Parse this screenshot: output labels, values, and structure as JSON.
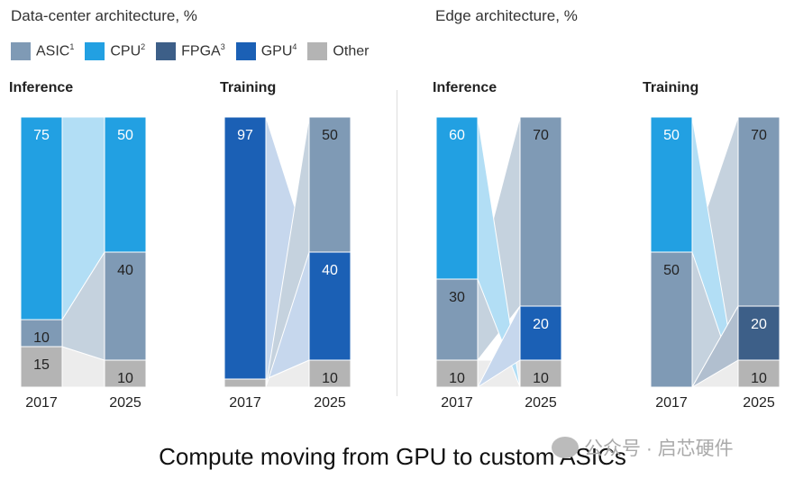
{
  "titles": {
    "data_center": "Data-center architecture, %",
    "edge": "Edge architecture, %"
  },
  "legend": [
    {
      "key": "ASIC",
      "label": "ASIC",
      "sup": "1",
      "color": "#7f9ab5"
    },
    {
      "key": "CPU",
      "label": "CPU",
      "sup": "2",
      "color": "#22a0e2"
    },
    {
      "key": "FPGA",
      "label": "FPGA",
      "sup": "3",
      "color": "#3d5f88"
    },
    {
      "key": "GPU",
      "label": "GPU",
      "sup": "4",
      "color": "#1b60b5"
    },
    {
      "key": "Other",
      "label": "Other",
      "sup": "",
      "color": "#b4b4b4"
    }
  ],
  "caption": "Compute moving from GPU to custom ASICs",
  "watermark": "公众号 · 启芯硬件",
  "chart_data": [
    {
      "type": "bar",
      "group": "Data-center architecture, %",
      "title": "Inference",
      "categories": [
        "2017",
        "2025"
      ],
      "stacks": [
        [
          [
            "Other",
            15
          ],
          [
            "ASIC",
            10
          ],
          [
            "CPU",
            75
          ]
        ],
        [
          [
            "Other",
            10
          ],
          [
            "ASIC",
            40
          ],
          [
            "CPU",
            50
          ]
        ]
      ],
      "ylim": [
        0,
        100
      ]
    },
    {
      "type": "bar",
      "group": "Data-center architecture, %",
      "title": "Training",
      "categories": [
        "2017",
        "2025"
      ],
      "stacks": [
        [
          [
            "Other",
            3
          ],
          [
            "GPU",
            97
          ]
        ],
        [
          [
            "Other",
            10
          ],
          [
            "GPU",
            40
          ],
          [
            "ASIC",
            50
          ]
        ]
      ],
      "ylim": [
        0,
        100
      ]
    },
    {
      "type": "bar",
      "group": "Edge architecture, %",
      "title": "Inference",
      "categories": [
        "2017",
        "2025"
      ],
      "stacks": [
        [
          [
            "Other",
            10
          ],
          [
            "ASIC",
            30
          ],
          [
            "CPU",
            60
          ]
        ],
        [
          [
            "Other",
            10
          ],
          [
            "GPU",
            20
          ],
          [
            "ASIC",
            70
          ]
        ]
      ],
      "ylim": [
        0,
        100
      ]
    },
    {
      "type": "bar",
      "group": "Edge architecture, %",
      "title": "Training",
      "categories": [
        "2017",
        "2025"
      ],
      "stacks": [
        [
          [
            "ASIC",
            50
          ],
          [
            "CPU",
            50
          ]
        ],
        [
          [
            "Other",
            10
          ],
          [
            "FPGA",
            20
          ],
          [
            "ASIC",
            70
          ]
        ]
      ],
      "ylim": [
        0,
        100
      ]
    }
  ]
}
